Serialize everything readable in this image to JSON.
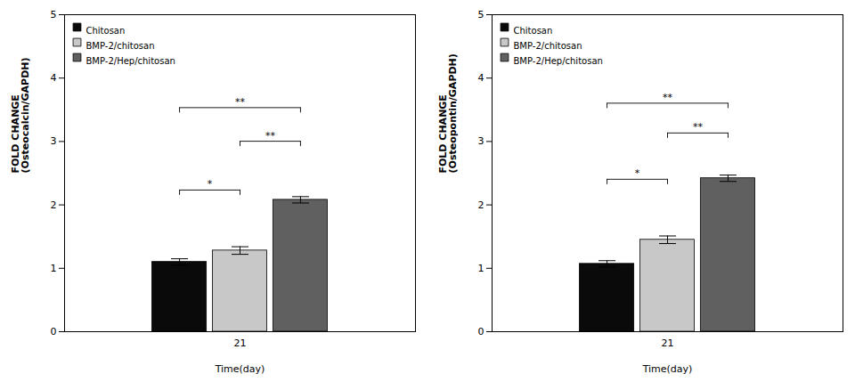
{
  "chart_data": [
    {
      "type": "bar",
      "xlabel": "Time(day)",
      "ylabel": "FOLD CHANGE\n(Osteocalcin/GAPDH)",
      "categories": [
        "21"
      ],
      "series": [
        {
          "name": "Chitosan",
          "color": "#0a0a0a",
          "values": [
            1.1
          ],
          "errors": [
            0.05
          ]
        },
        {
          "name": "BMP-2/chitosan",
          "color": "#c8c8c8",
          "values": [
            1.28
          ],
          "errors": [
            0.06
          ]
        },
        {
          "name": "BMP-2/Hep/chitosan",
          "color": "#606060",
          "values": [
            2.08
          ],
          "errors": [
            0.05
          ]
        }
      ],
      "ylim": [
        0,
        5
      ],
      "yticks": [
        0,
        1,
        2,
        3,
        4,
        5
      ],
      "grid": false,
      "legend": "upper left",
      "annotations": [
        {
          "from": "Chitosan",
          "to": "BMP-2/Hep/chitosan",
          "y": 3.45,
          "label": "**"
        },
        {
          "from": "BMP-2/chitosan",
          "to": "BMP-2/Hep/chitosan",
          "y": 2.92,
          "label": "**"
        },
        {
          "from": "Chitosan",
          "to": "BMP-2/chitosan",
          "y": 2.15,
          "label": "*"
        }
      ]
    },
    {
      "type": "bar",
      "xlabel": "Time(day)",
      "ylabel": "FOLD CHANGE\n(Osteopontin/GAPDH)",
      "categories": [
        "21"
      ],
      "series": [
        {
          "name": "Chitosan",
          "color": "#0a0a0a",
          "values": [
            1.07
          ],
          "errors": [
            0.05
          ]
        },
        {
          "name": "BMP-2/chitosan",
          "color": "#c8c8c8",
          "values": [
            1.45
          ],
          "errors": [
            0.06
          ]
        },
        {
          "name": "BMP-2/Hep/chitosan",
          "color": "#606060",
          "values": [
            2.42
          ],
          "errors": [
            0.05
          ]
        }
      ],
      "ylim": [
        0,
        5
      ],
      "yticks": [
        0,
        1,
        2,
        3,
        4,
        5
      ],
      "grid": false,
      "legend": "upper left",
      "annotations": [
        {
          "from": "Chitosan",
          "to": "BMP-2/Hep/chitosan",
          "y": 3.52,
          "label": "**"
        },
        {
          "from": "BMP-2/chitosan",
          "to": "BMP-2/Hep/chitosan",
          "y": 3.05,
          "label": "**"
        },
        {
          "from": "Chitosan",
          "to": "BMP-2/chitosan",
          "y": 2.32,
          "label": "*"
        }
      ]
    }
  ]
}
